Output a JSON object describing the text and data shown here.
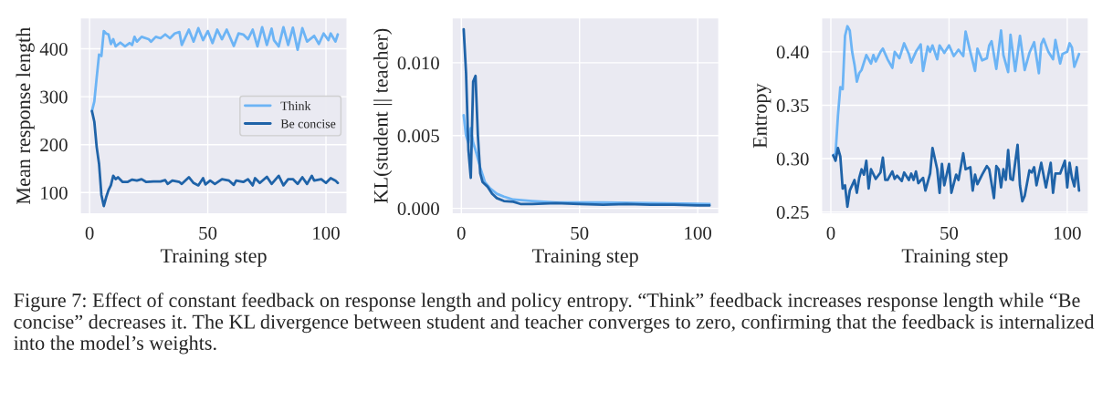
{
  "chart_data": [
    {
      "type": "line",
      "xlabel": "Training step",
      "ylabel": "Mean response length",
      "xlim": [
        -4,
        109
      ],
      "xticks": [
        0,
        50,
        100
      ],
      "ylim": [
        55,
        465
      ],
      "yticks": [
        100,
        200,
        300,
        400
      ],
      "grid": true,
      "legend": "right",
      "annotations": [
        "Figure 7: Effect of constant feedback on response length and policy entropy. “Think” feedback increases response length while “Be concise” decreases it. The KL divergence between student and teacher converges to zero, confirming that the feedback is internalized into the model’s weights."
      ],
      "series": [
        {
          "name": "Think",
          "color": "#6cb4f5",
          "x": [
            1,
            2,
            3,
            4,
            5,
            6,
            7,
            8,
            9,
            10,
            11,
            13,
            15,
            17,
            18,
            19,
            20,
            22,
            25,
            26,
            28,
            30,
            32,
            34,
            36,
            38,
            39,
            42,
            44,
            46,
            48,
            50,
            52,
            54,
            56,
            58,
            61,
            63,
            65,
            67,
            69,
            71,
            73,
            75,
            77,
            78,
            80,
            82,
            84,
            86,
            88,
            90,
            92,
            95,
            97,
            99,
            101,
            102,
            104,
            105
          ],
          "values": [
            270,
            290,
            340,
            388,
            385,
            437,
            432,
            430,
            410,
            420,
            405,
            413,
            405,
            412,
            408,
            425,
            415,
            425,
            420,
            415,
            425,
            422,
            430,
            422,
            432,
            435,
            408,
            440,
            415,
            443,
            418,
            437,
            412,
            440,
            420,
            440,
            406,
            432,
            430,
            420,
            440,
            405,
            445,
            408,
            442,
            418,
            405,
            445,
            408,
            444,
            398,
            443,
            415,
            427,
            410,
            432,
            418,
            432,
            415,
            430
          ]
        },
        {
          "name": "Be concise",
          "color": "#1f63a8",
          "x": [
            1,
            2,
            3,
            4,
            5,
            6,
            7,
            8,
            9,
            10,
            11,
            12,
            14,
            16,
            18,
            20,
            22,
            24,
            27,
            30,
            32,
            33,
            35,
            38,
            39,
            42,
            44,
            46,
            48,
            49,
            51,
            53,
            56,
            59,
            61,
            62,
            65,
            67,
            69,
            70,
            72,
            75,
            77,
            80,
            82,
            84,
            86,
            88,
            90,
            92,
            94,
            95,
            98,
            100,
            102,
            104,
            105
          ],
          "values": [
            270,
            248,
            195,
            160,
            95,
            72,
            90,
            105,
            115,
            135,
            128,
            132,
            122,
            122,
            127,
            125,
            128,
            122,
            123,
            123,
            126,
            118,
            125,
            122,
            118,
            132,
            120,
            115,
            130,
            117,
            125,
            118,
            128,
            125,
            116,
            125,
            122,
            128,
            115,
            130,
            120,
            133,
            118,
            135,
            115,
            128,
            128,
            118,
            132,
            118,
            135,
            125,
            128,
            120,
            130,
            125,
            120
          ]
        }
      ]
    },
    {
      "type": "line",
      "xlabel": "Training step",
      "ylabel": "KL(student || teacher)",
      "xlim": [
        -4,
        109
      ],
      "xticks": [
        0,
        50,
        100
      ],
      "ylim": [
        -0.0004,
        0.0131
      ],
      "yticks": [
        {
          "value": 0,
          "label": "0.000"
        },
        {
          "value": 0.005,
          "label": "0.005"
        },
        {
          "value": 0.01,
          "label": "0.010"
        }
      ],
      "grid": true,
      "series": [
        {
          "color": "#6cb4f5",
          "x": [
            1,
            2,
            3,
            4,
            5,
            6,
            8,
            10,
            12,
            15,
            18,
            22,
            30,
            40,
            60,
            80,
            105
          ],
          "values": [
            0.0064,
            0.005,
            0.0045,
            0.0055,
            0.0045,
            0.004,
            0.0028,
            0.0018,
            0.0014,
            0.001,
            0.0008,
            0.0006,
            0.0005,
            0.0004,
            0.0004,
            0.00035,
            0.0003
          ]
        },
        {
          "color": "#1f63a8",
          "x": [
            1,
            2,
            3,
            4,
            5,
            6,
            7,
            8,
            9,
            11,
            13,
            15,
            18,
            22,
            25,
            30,
            40,
            50,
            60,
            70,
            80,
            90,
            100,
            105
          ],
          "values": [
            0.0123,
            0.0093,
            0.004,
            0.0021,
            0.0087,
            0.0091,
            0.005,
            0.0024,
            0.0018,
            0.0015,
            0.001,
            0.0007,
            0.0005,
            0.00045,
            0.0003,
            0.0003,
            0.00035,
            0.0003,
            0.00025,
            0.0003,
            0.00025,
            0.00025,
            0.0002,
            0.0002
          ]
        }
      ]
    },
    {
      "type": "line",
      "xlabel": "Training step",
      "ylabel": "Entropy",
      "xlim": [
        -4,
        109
      ],
      "xticks": [
        0,
        50,
        100
      ],
      "ylim": [
        0.248,
        0.432
      ],
      "yticks": [
        {
          "value": 0.25,
          "label": "0.25"
        },
        {
          "value": 0.3,
          "label": "0.30"
        },
        {
          "value": 0.35,
          "label": "0.35"
        },
        {
          "value": 0.4,
          "label": "0.40"
        }
      ],
      "grid": true,
      "series": [
        {
          "color": "#6cb4f5",
          "x": [
            1,
            2,
            3,
            4,
            5,
            6,
            7,
            8,
            9,
            10,
            11,
            12,
            13,
            15,
            17,
            18,
            19,
            21,
            22,
            24,
            26,
            27,
            29,
            31,
            33,
            34,
            36,
            38,
            39,
            41,
            42,
            43,
            45,
            46,
            48,
            50,
            52,
            54,
            56,
            57,
            59,
            61,
            62,
            64,
            66,
            67,
            68,
            70,
            72,
            73,
            75,
            76,
            78,
            80,
            82,
            84,
            86,
            88,
            89,
            90,
            92,
            94,
            95,
            97,
            98,
            100,
            101,
            102,
            103,
            105
          ],
          "values": [
            0.303,
            0.305,
            0.34,
            0.367,
            0.365,
            0.415,
            0.424,
            0.42,
            0.4,
            0.388,
            0.372,
            0.38,
            0.383,
            0.397,
            0.389,
            0.397,
            0.391,
            0.4,
            0.403,
            0.393,
            0.385,
            0.4,
            0.394,
            0.408,
            0.398,
            0.39,
            0.4,
            0.407,
            0.382,
            0.405,
            0.4,
            0.406,
            0.393,
            0.406,
            0.399,
            0.406,
            0.396,
            0.402,
            0.396,
            0.419,
            0.4,
            0.382,
            0.403,
            0.392,
            0.394,
            0.406,
            0.41,
            0.384,
            0.42,
            0.397,
            0.381,
            0.416,
            0.382,
            0.415,
            0.383,
            0.399,
            0.409,
            0.38,
            0.407,
            0.412,
            0.4,
            0.393,
            0.411,
            0.389,
            0.398,
            0.4,
            0.408,
            0.404,
            0.386,
            0.398
          ]
        },
        {
          "color": "#1f63a8",
          "x": [
            1,
            2,
            3,
            4,
            5,
            6,
            7,
            8,
            10,
            11,
            12,
            13,
            14,
            15,
            16,
            17,
            19,
            21,
            22,
            23,
            24,
            26,
            27,
            28,
            30,
            31,
            33,
            34,
            35,
            36,
            37,
            39,
            40,
            42,
            43,
            45,
            46,
            47,
            48,
            50,
            51,
            53,
            54,
            56,
            57,
            59,
            60,
            61,
            62,
            64,
            66,
            67,
            69,
            70,
            71,
            72,
            73,
            74,
            75,
            76,
            77,
            79,
            80,
            81,
            82,
            84,
            85,
            86,
            87,
            89,
            91,
            93,
            94,
            95,
            97,
            99,
            100,
            101,
            102,
            103,
            104,
            105
          ],
          "values": [
            0.303,
            0.298,
            0.31,
            0.302,
            0.272,
            0.275,
            0.255,
            0.27,
            0.28,
            0.268,
            0.282,
            0.29,
            0.285,
            0.298,
            0.272,
            0.29,
            0.281,
            0.287,
            0.301,
            0.28,
            0.28,
            0.288,
            0.281,
            0.284,
            0.279,
            0.287,
            0.28,
            0.286,
            0.28,
            0.288,
            0.277,
            0.282,
            0.27,
            0.286,
            0.31,
            0.29,
            0.268,
            0.295,
            0.275,
            0.295,
            0.268,
            0.285,
            0.28,
            0.305,
            0.29,
            0.292,
            0.27,
            0.285,
            0.276,
            0.285,
            0.293,
            0.29,
            0.263,
            0.293,
            0.29,
            0.273,
            0.29,
            0.28,
            0.308,
            0.281,
            0.28,
            0.313,
            0.275,
            0.26,
            0.265,
            0.289,
            0.287,
            0.292,
            0.275,
            0.296,
            0.273,
            0.296,
            0.268,
            0.286,
            0.286,
            0.298,
            0.273,
            0.296,
            0.282,
            0.274,
            0.292,
            0.27
          ]
        }
      ]
    }
  ]
}
